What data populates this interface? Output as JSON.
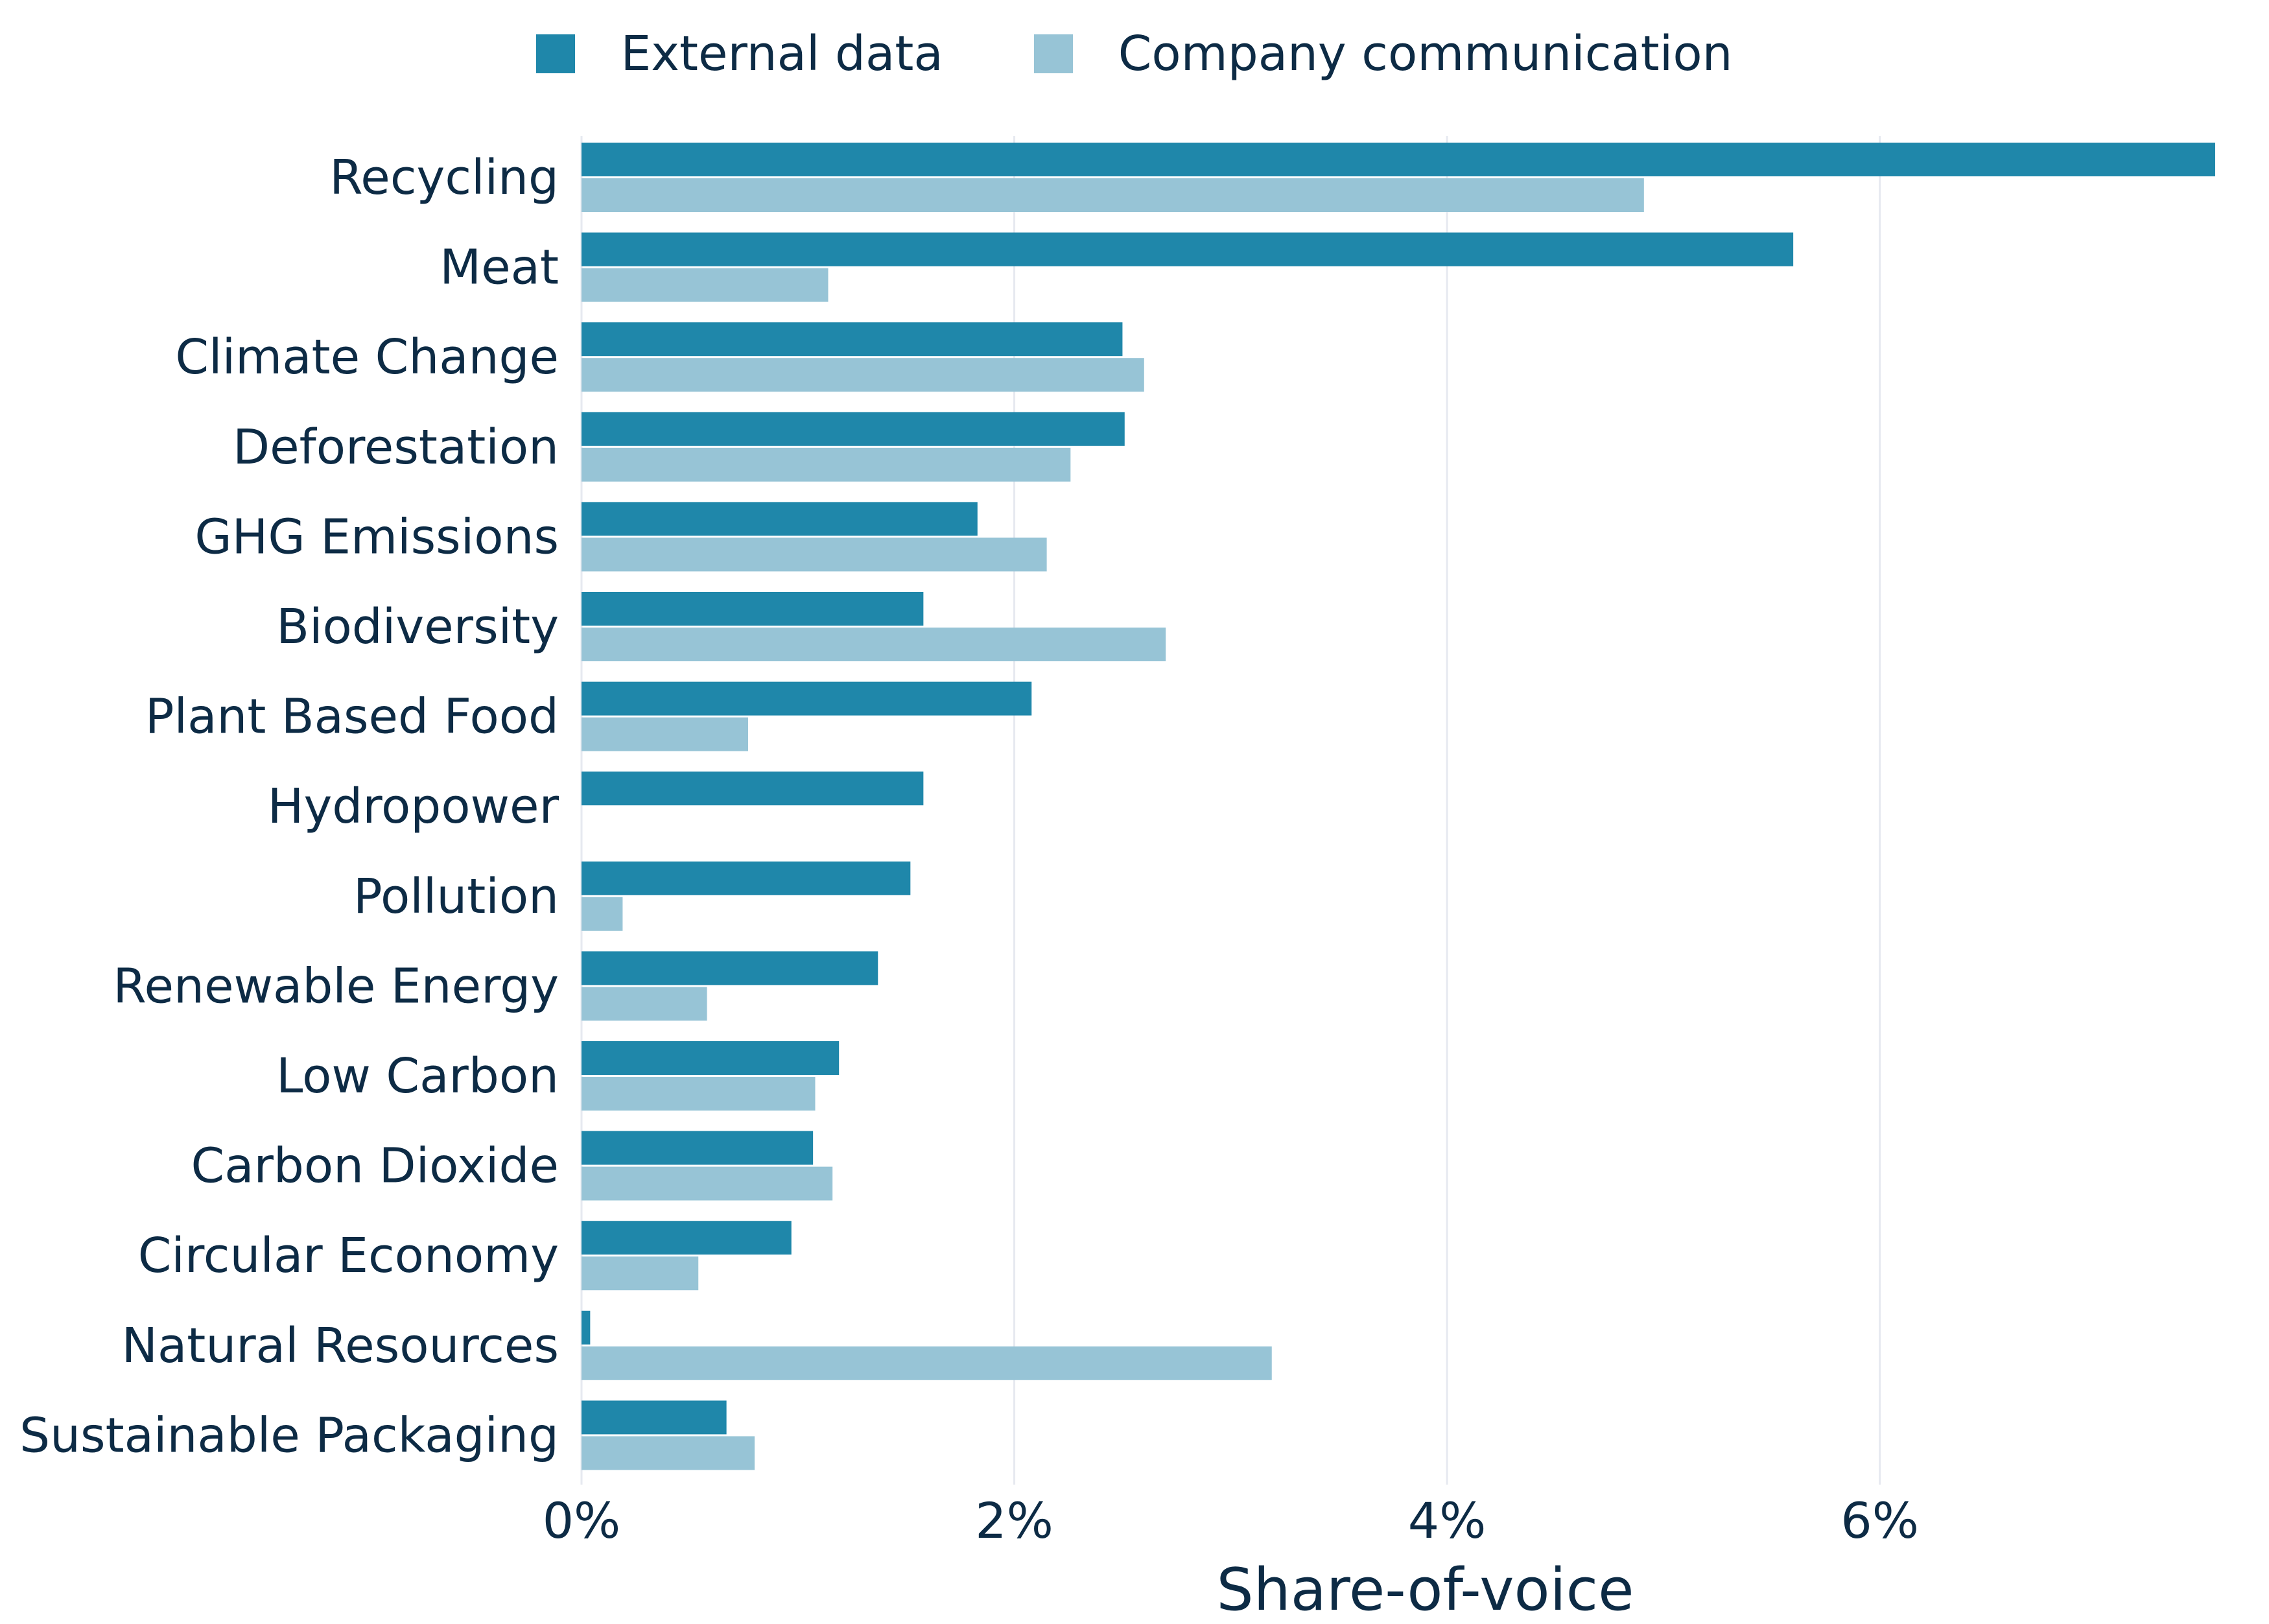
{
  "chart_data": {
    "type": "bar",
    "orientation": "horizontal",
    "title": "",
    "xlabel": "Share-of-voice",
    "ylabel": "",
    "xlim": [
      0,
      7.55
    ],
    "x_ticks": [
      0,
      2,
      4,
      6
    ],
    "x_tick_labels": [
      "0%",
      "2%",
      "4%",
      "6%"
    ],
    "grid": "vertical",
    "legend_position": "top-center",
    "categories": [
      "Recycling",
      "Meat",
      "Climate Change",
      "Deforestation",
      "GHG Emissions",
      "Biodiversity",
      "Plant Based Food",
      "Hydropower",
      "Pollution",
      "Renewable Energy",
      "Low Carbon",
      "Carbon Dioxide",
      "Circular Economy",
      "Natural Resources",
      "Sustainable Packaging"
    ],
    "series": [
      {
        "name": "External data",
        "color": "#1f87aa",
        "values": [
          7.55,
          5.6,
          2.5,
          2.51,
          1.83,
          1.58,
          2.08,
          1.58,
          1.52,
          1.37,
          1.19,
          1.07,
          0.97,
          0.04,
          0.67
        ]
      },
      {
        "name": "Company communication",
        "color": "#97c4d6",
        "values": [
          4.91,
          1.14,
          2.6,
          2.26,
          2.15,
          2.7,
          0.77,
          0,
          0.19,
          0.58,
          1.08,
          1.16,
          0.54,
          3.19,
          0.8
        ]
      }
    ]
  }
}
